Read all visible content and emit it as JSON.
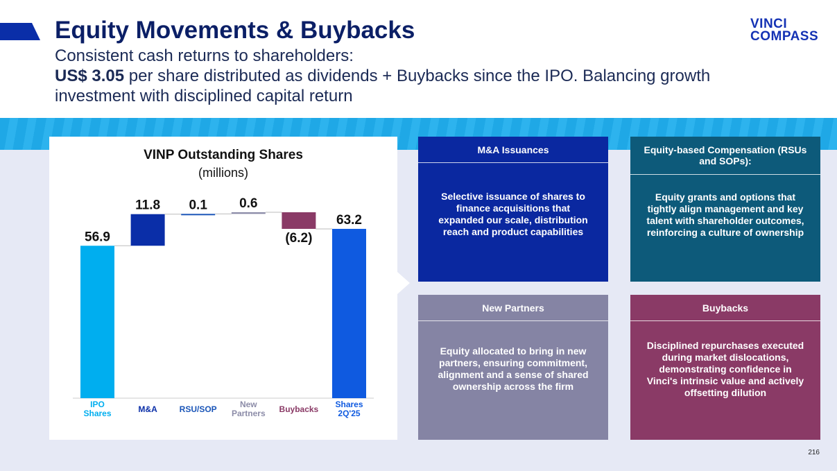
{
  "header": {
    "title": "Equity Movements & Buybacks",
    "subtitle": "Consistent cash returns to shareholders:",
    "highlight": "US$ 3.05",
    "body": "per share distributed as dividends + Buybacks since the IPO. Balancing growth investment with disciplined capital return"
  },
  "logo": {
    "line1": "VINCI",
    "line2": "COMPASS"
  },
  "chart_data": {
    "type": "waterfall",
    "title": "VINP Outstanding Shares",
    "subtitle": "(millions)",
    "categories": [
      "IPO Shares",
      "M&A",
      "RSU/SOP",
      "New Partners",
      "Buybacks",
      "Shares 2Q'25"
    ],
    "values": [
      56.9,
      11.8,
      0.1,
      0.6,
      -6.2,
      63.2
    ],
    "value_labels": [
      "56.9",
      "11.8",
      "0.1",
      "0.6",
      "(6.2)",
      "63.2"
    ],
    "colors": [
      "#00aeef",
      "#0a2ea8",
      "#1a55b8",
      "#8c8ca8",
      "#8a3a66",
      "#0f5ae0"
    ]
  },
  "cards": [
    {
      "title": "M&A Issuances",
      "text": "Selective issuance of shares to finance acquisitions that expanded our scale, distribution reach and product capabilities",
      "color": "#0a28a0"
    },
    {
      "title": "Equity-based Compensation (RSUs and SOPs):",
      "text": "Equity grants and options that tightly align management and key talent with shareholder outcomes, reinforcing a culture of ownership",
      "color": "#0d5a7a"
    },
    {
      "title": "New Partners",
      "text": "Equity allocated to bring in new partners, ensuring commitment, alignment and a sense of shared ownership across the firm",
      "color": "#8584a4"
    },
    {
      "title": "Buybacks",
      "text": "Disciplined repurchases executed during market dislocations, demonstrating confidence in Vinci's intrinsic value and actively offsetting dilution",
      "color": "#8a3a66"
    }
  ],
  "page_number": "216"
}
